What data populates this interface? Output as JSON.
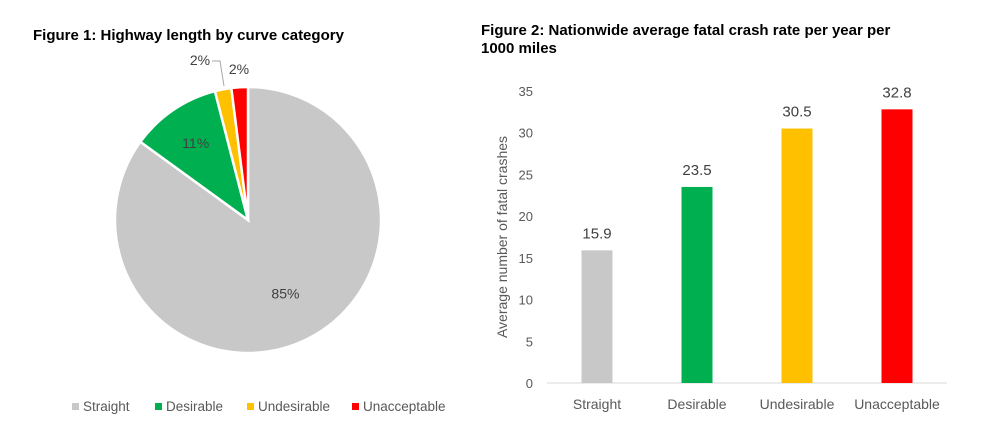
{
  "chart_data": [
    {
      "type": "pie",
      "title": "Figure 1: Highway length by curve category",
      "categories": [
        "Straight",
        "Desirable",
        "Undesirable",
        "Unacceptable"
      ],
      "values": [
        85,
        11,
        2,
        2
      ],
      "labels": [
        "85%",
        "11%",
        "2%",
        "2%"
      ],
      "colors": [
        "#c8c8c8",
        "#00b050",
        "#ffc000",
        "#ff0000"
      ],
      "legend": "bottom"
    },
    {
      "type": "bar",
      "title": "Figure 2: Nationwide average fatal crash rate per year per 1000 miles",
      "categories": [
        "Straight",
        "Desirable",
        "Undesirable",
        "Unacceptable"
      ],
      "values": [
        15.9,
        23.5,
        30.5,
        32.8
      ],
      "value_labels": [
        "15.9",
        "23.5",
        "30.5",
        "32.8"
      ],
      "colors": [
        "#c8c8c8",
        "#00b050",
        "#ffc000",
        "#ff0000"
      ],
      "xlabel": "",
      "ylabel": "Average number of fatal crashes",
      "ylim": [
        0,
        35
      ],
      "yticks": [
        0,
        5,
        10,
        15,
        20,
        25,
        30,
        35
      ],
      "grid": false
    }
  ]
}
